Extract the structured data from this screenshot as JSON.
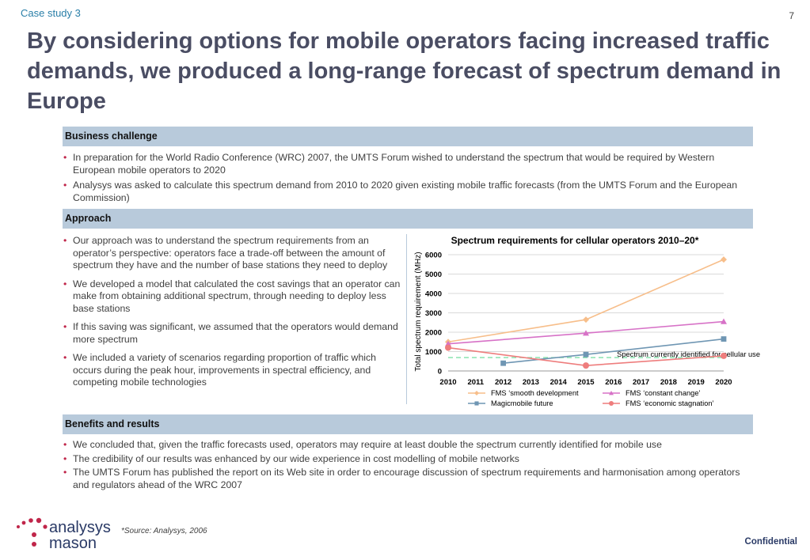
{
  "header": {
    "case_label": "Case study 3",
    "page_number": "7",
    "title": "By considering options for mobile operators facing increased traffic demands, we produced a long-range forecast of spectrum demand in Europe"
  },
  "sections": {
    "challenge": {
      "title": "Business challenge",
      "bullets": [
        "In preparation for the World Radio Conference (WRC) 2007, the UMTS Forum wished to understand the spectrum that would be required by Western European mobile operators to 2020",
        "Analysys was asked to calculate this spectrum demand from 2010 to 2020 given existing mobile traffic forecasts (from the UMTS Forum and the European Commission)"
      ]
    },
    "approach": {
      "title": "Approach",
      "bullets": [
        "Our approach was to understand the spectrum requirements from an operator’s perspective: operators face a trade-off between the amount of spectrum they have and the number of base stations they need to deploy",
        "We developed a model that calculated the cost savings that an operator can make from obtaining additional spectrum, through needing to deploy less base stations",
        "If this saving was significant, we assumed that the operators would demand more spectrum",
        "We included a variety of scenarios regarding proportion of traffic which occurs during the peak hour, improvements in spectral efficiency, and competing mobile technologies"
      ]
    },
    "benefits": {
      "title": "Benefits and results",
      "bullets": [
        "We concluded that, given the traffic forecasts used, operators may require at least double the spectrum currently identified for mobile use",
        "The credibility of our results was enhanced by our wide experience in cost modelling of mobile networks",
        "The UMTS Forum has published the report on its Web site in order to encourage discussion of spectrum requirements and harmonisation among operators and regulators ahead of the WRC 2007"
      ]
    }
  },
  "chart_data": {
    "type": "line",
    "title": "Spectrum requirements for cellular operators 2010–20*",
    "ylabel": "Total spectrum requirement (MHz)",
    "xlabel": "",
    "x": [
      "2010",
      "2011",
      "2012",
      "2013",
      "2014",
      "2015",
      "2016",
      "2017",
      "2018",
      "2019",
      "2020"
    ],
    "ylim": [
      0,
      6000
    ],
    "yticks": [
      "0",
      "1000",
      "2000",
      "3000",
      "4000",
      "5000",
      "6000"
    ],
    "grid": true,
    "legend_position": "bottom",
    "series": [
      {
        "name": "FMS ‘smooth development",
        "color": "#f7be8a",
        "marker": "diamond",
        "points": [
          [
            2010,
            1500
          ],
          [
            2015,
            2650
          ],
          [
            2020,
            5750
          ]
        ]
      },
      {
        "name": "FMS ‘constant change’",
        "color": "#d772c7",
        "marker": "triangle",
        "points": [
          [
            2010,
            1400
          ],
          [
            2015,
            1950
          ],
          [
            2020,
            2550
          ]
        ]
      },
      {
        "name": "Magicmobile future",
        "color": "#6f96b3",
        "marker": "square",
        "points": [
          [
            2012,
            400
          ],
          [
            2015,
            850
          ],
          [
            2020,
            1650
          ]
        ]
      },
      {
        "name": "FMS ‘economic stagnation’",
        "color": "#ee7d7d",
        "marker": "circle",
        "points": [
          [
            2010,
            1200
          ],
          [
            2015,
            280
          ],
          [
            2020,
            780
          ]
        ]
      }
    ],
    "reference_line": {
      "label": "Spectrum currently identified for cellular use",
      "value": 693,
      "color": "#7fe0a8"
    }
  },
  "footer": {
    "logo_line1": "analysys",
    "logo_line2": "mason",
    "source": "*Source: Analysys, 2006",
    "confidential": "Confidential"
  },
  "colors": {
    "section_bar": "#b8cadb",
    "bullet": "#c0264a",
    "title": "#4a4d63",
    "logo_dots": "#c0264a",
    "logo_text": "#2a3a66"
  }
}
